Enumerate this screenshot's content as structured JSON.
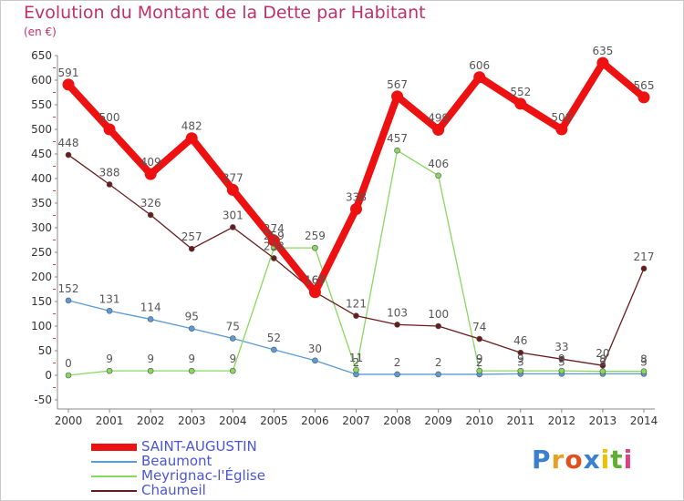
{
  "title": "Evolution du Montant de la Dette par Habitant",
  "subtitle": "(en €)",
  "logo_text": "Proxiti",
  "chart_data": {
    "type": "line",
    "title": "Evolution du Montant de la Dette par Habitant",
    "ylabel": "(en €)",
    "x": [
      2000,
      2001,
      2002,
      2003,
      2004,
      2005,
      2006,
      2007,
      2008,
      2009,
      2010,
      2011,
      2012,
      2013,
      2014
    ],
    "ylim": [
      -50,
      650
    ],
    "yticks": [
      -50,
      0,
      50,
      100,
      150,
      200,
      250,
      300,
      350,
      400,
      450,
      500,
      550,
      600,
      650
    ],
    "grid": false,
    "legend": "bottom-left",
    "series": [
      {
        "name": "SAINT-AUGUSTIN",
        "color": "#ee1111",
        "values": [
          591,
          500,
          409,
          482,
          377,
          274,
          169,
          338,
          567,
          499,
          606,
          552,
          500,
          635,
          565
        ]
      },
      {
        "name": "Beaumont",
        "color": "#5a9bd4",
        "values": [
          152,
          131,
          114,
          95,
          75,
          52,
          30,
          2,
          2,
          2,
          2,
          3,
          3,
          3,
          3
        ]
      },
      {
        "name": "Meyrignac-l'Église",
        "color": "#88d860",
        "values": [
          0,
          9,
          9,
          9,
          9,
          259,
          259,
          11,
          457,
          406,
          9,
          9,
          9,
          8,
          8
        ]
      },
      {
        "name": "Chaumeil",
        "color": "#6a1a1a",
        "values": [
          448,
          388,
          326,
          257,
          301,
          238,
          169,
          121,
          103,
          100,
          74,
          46,
          33,
          20,
          217
        ]
      }
    ]
  }
}
